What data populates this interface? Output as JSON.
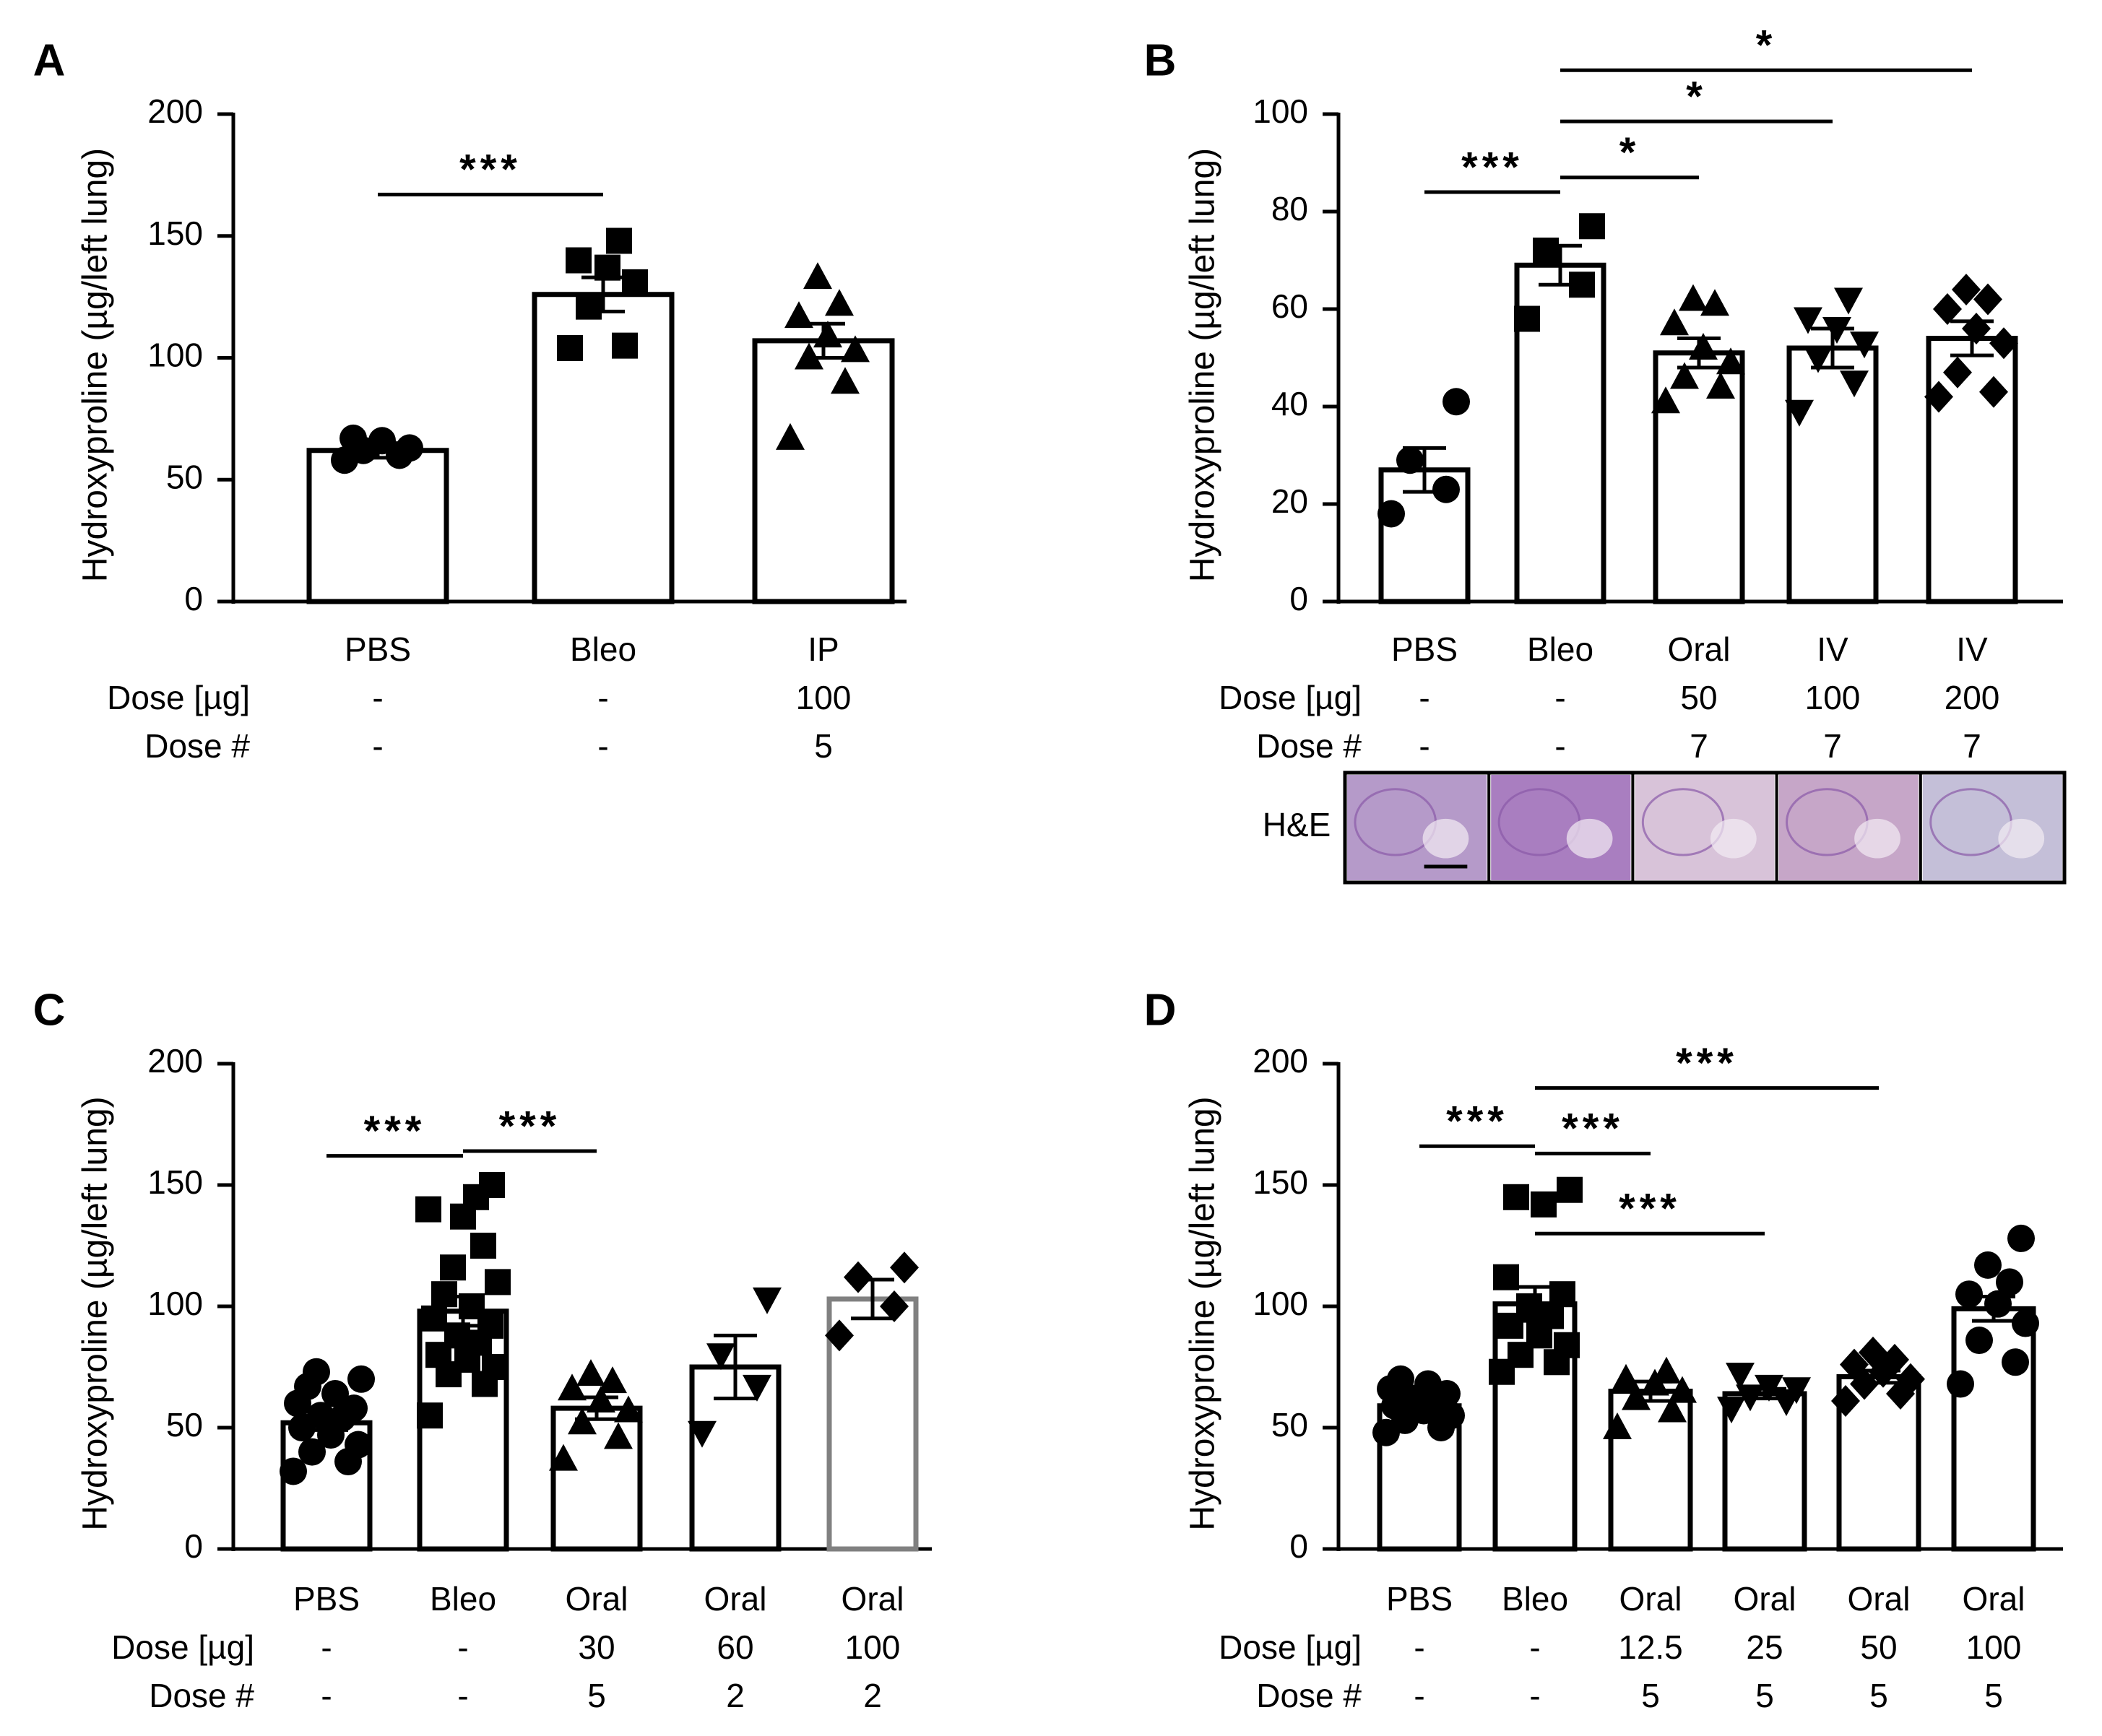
{
  "chart_data": [
    {
      "panel": "A",
      "type": "bar",
      "ylabel": "Hydroxyproline (µg/left lung)",
      "ylim": [
        0,
        200
      ],
      "yticks": [
        "0",
        "50",
        "100",
        "150",
        "200"
      ],
      "row_labels": [
        "Dose [µg]",
        "Dose #"
      ],
      "groups": [
        {
          "name": "PBS",
          "dose": "-",
          "doses": "-",
          "mean": 62,
          "sem": 3,
          "marker": "circle",
          "points": [
            58,
            60,
            62,
            63,
            66,
            67
          ]
        },
        {
          "name": "Bleo",
          "dose": "-",
          "doses": "-",
          "mean": 126,
          "sem": 7,
          "marker": "square",
          "points": [
            104,
            105,
            121,
            131,
            137,
            140,
            148
          ]
        },
        {
          "name": "IP",
          "dose": "100",
          "doses": "5",
          "mean": 107,
          "sem": 7,
          "marker": "triangle-up",
          "points": [
            67,
            90,
            100,
            103,
            109,
            117,
            122,
            133
          ]
        }
      ],
      "brackets": [
        {
          "from": 0,
          "to": 1,
          "level": 167,
          "label": "***"
        }
      ]
    },
    {
      "panel": "B",
      "type": "bar",
      "ylabel": "Hydroxyproline (µg/left lung)",
      "ylim": [
        0,
        100
      ],
      "yticks": [
        "0",
        "20",
        "40",
        "60",
        "80",
        "100"
      ],
      "row_labels": [
        "Dose [µg]",
        "Dose #"
      ],
      "groups": [
        {
          "name": "PBS",
          "dose": "-",
          "doses": "-",
          "mean": 27,
          "sem": 4.5,
          "marker": "circle",
          "points": [
            18,
            23,
            29,
            41
          ]
        },
        {
          "name": "Bleo",
          "dose": "-",
          "doses": "-",
          "mean": 69,
          "sem": 4,
          "marker": "square",
          "points": [
            58,
            65,
            72,
            77
          ]
        },
        {
          "name": "Oral",
          "dose": "50",
          "doses": "7",
          "mean": 51,
          "sem": 3,
          "marker": "triangle-up",
          "points": [
            41,
            44,
            46,
            49,
            52,
            57,
            61,
            62
          ]
        },
        {
          "name": "IV",
          "dose": "100",
          "doses": "7",
          "mean": 52,
          "sem": 4,
          "marker": "triangle-down",
          "points": [
            39,
            45,
            50,
            53,
            56,
            58,
            62
          ]
        },
        {
          "name": "IV",
          "dose": "200",
          "doses": "7",
          "mean": 54,
          "sem": 3.5,
          "marker": "diamond",
          "points": [
            42,
            43,
            47,
            53,
            56,
            60,
            62,
            64
          ]
        }
      ],
      "brackets": [
        {
          "from": 0,
          "to": 1,
          "level": 84,
          "label": "***"
        },
        {
          "from": 1,
          "to": 2,
          "level": 87,
          "label": "*"
        },
        {
          "from": 1,
          "to": 3,
          "level": 98.5,
          "label": "*"
        },
        {
          "from": 1,
          "to": 4,
          "level": 109,
          "label": "*"
        }
      ],
      "histology_label": "H&E"
    },
    {
      "panel": "C",
      "type": "bar",
      "ylabel": "Hydroxyproline (µg/left lung)",
      "ylim": [
        0,
        200
      ],
      "yticks": [
        "0",
        "50",
        "100",
        "150",
        "200"
      ],
      "row_labels": [
        "Dose [µg]",
        "Dose #"
      ],
      "groups": [
        {
          "name": "PBS",
          "dose": "-",
          "doses": "-",
          "mean": 52,
          "sem": 3,
          "marker": "circle",
          "points": [
            32,
            36,
            40,
            43,
            47,
            50,
            54,
            55,
            58,
            60,
            64,
            67,
            70,
            73
          ]
        },
        {
          "name": "Bleo",
          "dose": "-",
          "doses": "-",
          "mean": 98,
          "sem": 6,
          "marker": "square",
          "points": [
            55,
            68,
            72,
            75,
            78,
            80,
            85,
            88,
            92,
            95,
            100,
            105,
            110,
            116,
            125,
            137,
            140,
            145,
            150
          ]
        },
        {
          "name": "Oral",
          "dose": "30",
          "doses": "5",
          "mean": 58,
          "sem": 4.5,
          "marker": "triangle-up",
          "points": [
            37,
            46,
            52,
            57,
            61,
            66,
            69,
            72
          ]
        },
        {
          "name": "Oral",
          "dose": "60",
          "doses": "2",
          "mean": 75,
          "sem": 13,
          "marker": "triangle-down",
          "points": [
            48,
            67,
            80,
            103
          ]
        },
        {
          "name": "Oral",
          "dose": "100",
          "doses": "2",
          "mean": 103,
          "sem": 8,
          "marker": "diamond",
          "points": [
            88,
            100,
            112,
            116
          ],
          "bar_color": "#808080"
        }
      ],
      "brackets": [
        {
          "from": 0,
          "to": 1,
          "level": 162,
          "label": "***"
        },
        {
          "from": 1,
          "to": 2,
          "level": 164,
          "label": "***"
        }
      ]
    },
    {
      "panel": "D",
      "type": "bar",
      "ylabel": "Hydroxyproline (µg/left lung)",
      "ylim": [
        0,
        200
      ],
      "yticks": [
        "0",
        "50",
        "100",
        "150",
        "200"
      ],
      "row_labels": [
        "Dose [µg]",
        "Dose #"
      ],
      "groups": [
        {
          "name": "PBS",
          "dose": "-",
          "doses": "-",
          "mean": 59,
          "sem": 2,
          "marker": "circle",
          "points": [
            48,
            50,
            53,
            55,
            57,
            59,
            60,
            62,
            64,
            66,
            68,
            70
          ]
        },
        {
          "name": "Bleo",
          "dose": "-",
          "doses": "-",
          "mean": 101,
          "sem": 7,
          "marker": "square",
          "points": [
            73,
            77,
            80,
            84,
            88,
            92,
            96,
            100,
            105,
            112,
            142,
            145,
            148
          ]
        },
        {
          "name": "Oral",
          "dose": "12.5",
          "doses": "5",
          "mean": 65,
          "sem": 4,
          "marker": "triangle-up",
          "points": [
            50,
            57,
            62,
            65,
            68,
            70,
            73
          ]
        },
        {
          "name": "Oral",
          "dose": "25",
          "doses": "5",
          "mean": 64,
          "sem": 2,
          "marker": "triangle-down",
          "points": [
            58,
            61,
            63,
            66,
            67,
            72
          ]
        },
        {
          "name": "Oral",
          "dose": "50",
          "doses": "5",
          "mean": 71,
          "sem": 2.5,
          "marker": "diamond",
          "points": [
            61,
            64,
            68,
            70,
            73,
            76,
            78,
            81
          ]
        },
        {
          "name": "Oral",
          "dose": "100",
          "doses": "5",
          "mean": 99,
          "sem": 5,
          "marker": "circle",
          "points": [
            68,
            77,
            86,
            93,
            101,
            105,
            110,
            117,
            128
          ]
        }
      ],
      "brackets": [
        {
          "from": 0,
          "to": 1,
          "level": 166,
          "label": "***"
        },
        {
          "from": 1,
          "to": 2,
          "level": 163,
          "label": "***"
        },
        {
          "from": 1,
          "to": 3,
          "level": 130,
          "label": "***"
        },
        {
          "from": 1,
          "to": 4,
          "level": 190,
          "label": "***"
        }
      ]
    }
  ]
}
